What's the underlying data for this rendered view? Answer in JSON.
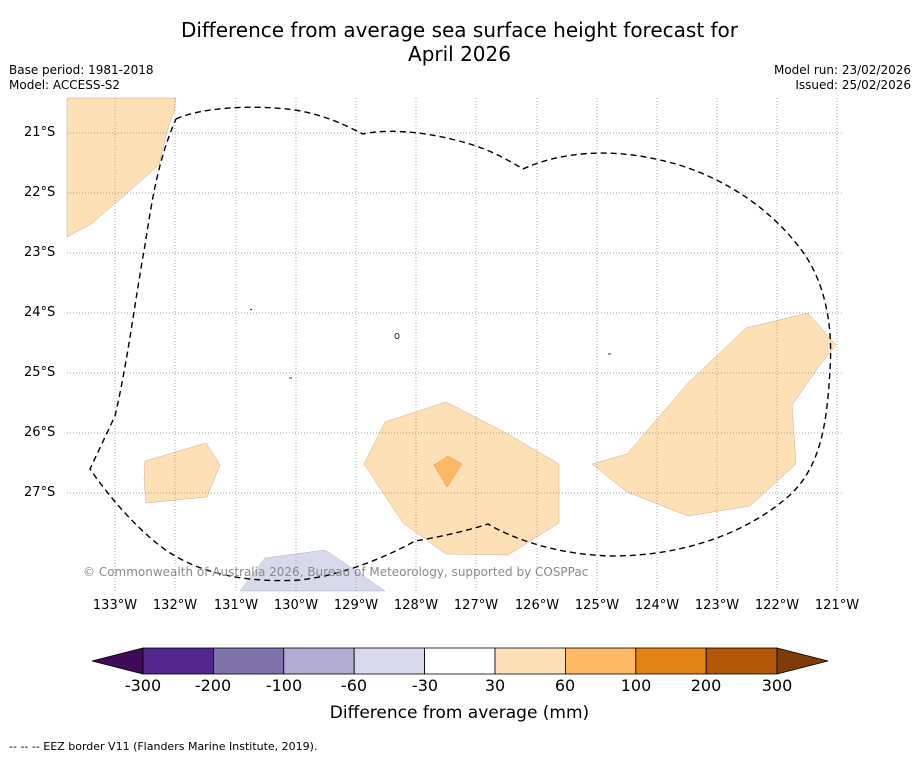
{
  "title_line1": "Difference from average sea surface height forecast for",
  "title_line2": "April 2026",
  "base_period": "Base period: 1981-2018",
  "model": "Model: ACCESS-S2",
  "model_run": "Model run: 23/02/2026",
  "issued": "Issued: 25/02/2026",
  "copyright": "© Commonwealth of Australia 2026, Bureau of Meteorology, supported by COSPPac",
  "footnote": "--  --  -- EEZ border V11 (Flanders Marine Institute, 2019).",
  "lat_labels": [
    "21°S",
    "22°S",
    "23°S",
    "24°S",
    "25°S",
    "26°S",
    "27°S"
  ],
  "lon_labels": [
    "133°W",
    "132°W",
    "131°W",
    "130°W",
    "129°W",
    "128°W",
    "127°W",
    "126°W",
    "125°W",
    "124°W",
    "123°W",
    "122°W",
    "121°W"
  ],
  "colorbar": {
    "title": "Difference from average (mm)",
    "tick_labels": [
      "-300",
      "-200",
      "-100",
      "-60",
      "-30",
      "30",
      "60",
      "100",
      "200",
      "300"
    ],
    "colors": [
      "#3f0a57",
      "#54278f",
      "#8073ac",
      "#b2abd2",
      "#d8daeb",
      "#ffffff",
      "#fee0b6",
      "#fdb863",
      "#e08214",
      "#b35806",
      "#7f3b08"
    ]
  },
  "colors": {
    "pos_30_60": "#fee0b6",
    "pos_60_100": "#fdb863",
    "neg_30_60": "#d8daeb",
    "grid": "#888888",
    "eez": "#000000"
  }
}
